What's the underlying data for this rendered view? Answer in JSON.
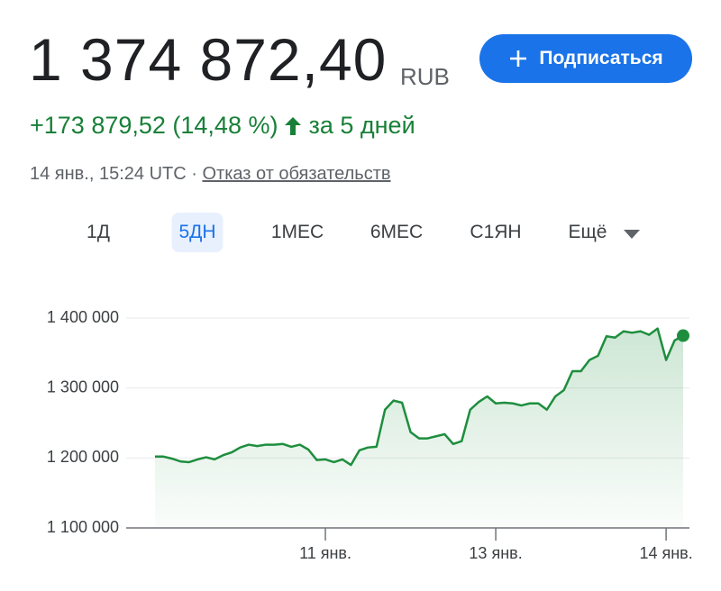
{
  "header": {
    "price": "1 374 872,40",
    "currency": "RUB",
    "button": "Подписаться",
    "change": "+173 879,52 (14,48 %)",
    "period": "за 5 дней",
    "timestamp": "14 янв., 15:24 UTC",
    "separator": "·",
    "disclaimer": "Отказ от обязательств"
  },
  "tabs": [
    "1Д",
    "5ДН",
    "1МЕС",
    "6МЕС",
    "С1ЯН",
    "Ещё"
  ],
  "chart_data": {
    "type": "line",
    "color": "#1e8e3e",
    "grid": true,
    "categories": [
      null,
      null,
      null,
      null,
      null,
      null,
      null,
      null,
      null,
      null,
      null,
      null,
      null,
      null,
      null,
      null,
      null,
      null,
      null,
      null,
      "11 янв.",
      null,
      null,
      null,
      null,
      null,
      null,
      null,
      null,
      null,
      null,
      null,
      null,
      null,
      null,
      null,
      null,
      null,
      null,
      null,
      "13 янв.",
      null,
      null,
      null,
      null,
      null,
      null,
      null,
      null,
      null,
      null,
      null,
      null,
      null,
      null,
      null,
      null,
      null,
      null,
      null,
      "14 янв.",
      null,
      null
    ],
    "values": [
      1202000,
      1202000,
      1199000,
      1195000,
      1194000,
      1198000,
      1201000,
      1198000,
      1204000,
      1208000,
      1215000,
      1219000,
      1217000,
      1219000,
      1219000,
      1220000,
      1216000,
      1219000,
      1212000,
      1197000,
      1198000,
      1194000,
      1198000,
      1190000,
      1211000,
      1215000,
      1216000,
      1269000,
      1282000,
      1279000,
      1237000,
      1228000,
      1228000,
      1231000,
      1234000,
      1220000,
      1224000,
      1269000,
      1280000,
      1288000,
      1278000,
      1279000,
      1278000,
      1275000,
      1278000,
      1278000,
      1269000,
      1288000,
      1297000,
      1324000,
      1324000,
      1340000,
      1346000,
      1374000,
      1372000,
      1381000,
      1379000,
      1381000,
      1376000,
      1385000,
      1340000,
      1368000,
      1374872.4
    ],
    "ylim": [
      1100000,
      1400000
    ],
    "yticks": [
      {
        "value": 1100000,
        "label": "1 100 000"
      },
      {
        "value": 1200000,
        "label": "1 200 000"
      },
      {
        "value": 1300000,
        "label": "1 300 000"
      },
      {
        "value": 1400000,
        "label": "1 400 000"
      }
    ]
  }
}
